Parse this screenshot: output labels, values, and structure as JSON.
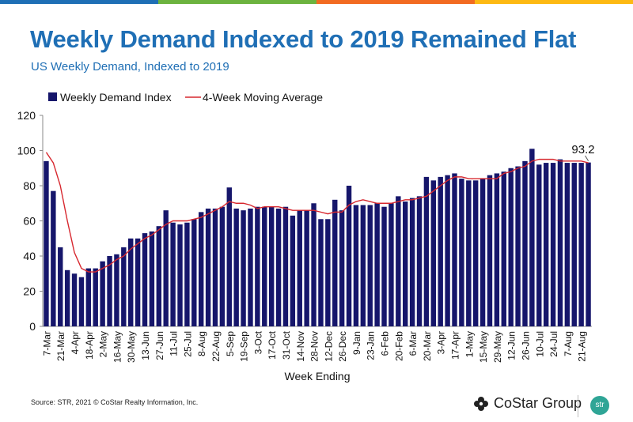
{
  "header": {
    "title": "Weekly Demand Indexed to 2019 Remained Flat",
    "subtitle": "US Weekly Demand, Indexed to 2019"
  },
  "colors": {
    "bar": "#16166b",
    "line": "#d7282f",
    "title": "#1f6fb5",
    "top_stripe": [
      "#1f6fb5",
      "#6cb33f",
      "#f26b21",
      "#fdb913"
    ]
  },
  "footer": {
    "source": "Source: STR, 2021 © CoStar Realty Information, Inc.",
    "logo_text": "CoStar Group",
    "logo_icon": "costar-flower-icon",
    "badge_text": "str"
  },
  "chart_data": {
    "type": "bar",
    "xlabel": "Week Ending",
    "ylabel": "",
    "ylim": [
      0,
      120
    ],
    "yticks": [
      0,
      20,
      40,
      60,
      80,
      100,
      120
    ],
    "legend": {
      "placement": "top-left",
      "entries": [
        "Weekly Demand Index",
        "4-Week Moving Average"
      ]
    },
    "callout": "93.2",
    "tick_labels": [
      "7-Mar",
      "21-Mar",
      "4-Apr",
      "18-Apr",
      "2-May",
      "16-May",
      "30-May",
      "13-Jun",
      "27-Jun",
      "11-Jul",
      "25-Jul",
      "8-Aug",
      "22-Aug",
      "5-Sep",
      "19-Sep",
      "3-Oct",
      "17-Oct",
      "31-Oct",
      "14-Nov",
      "28-Nov",
      "12-Dec",
      "26-Dec",
      "9-Jan",
      "23-Jan",
      "6-Feb",
      "20-Feb",
      "6-Mar",
      "20-Mar",
      "3-Apr",
      "17-Apr",
      "1-May",
      "15-May",
      "29-May",
      "12-Jun",
      "26-Jun",
      "10-Jul",
      "24-Jul",
      "7-Aug",
      "21-Aug"
    ],
    "series": [
      {
        "name": "Weekly Demand Index",
        "type": "bar",
        "values": [
          94,
          77,
          45,
          32,
          30,
          28,
          33,
          33,
          37,
          40,
          41,
          45,
          50,
          50,
          53,
          54,
          57,
          66,
          59,
          58,
          59,
          61,
          65,
          67,
          67,
          68,
          79,
          67,
          66,
          67,
          68,
          68,
          68,
          67,
          68,
          63,
          66,
          66,
          70,
          61,
          61,
          72,
          66,
          80,
          69,
          69,
          69,
          70,
          68,
          70,
          74,
          71,
          73,
          74,
          85,
          83,
          85,
          86,
          87,
          84,
          83,
          83,
          84,
          86,
          87,
          88,
          90,
          91,
          94,
          101,
          92,
          93,
          93,
          95,
          93,
          93,
          93,
          93.2
        ]
      },
      {
        "name": "4-Week Moving Average",
        "type": "line",
        "values": [
          99,
          93,
          80,
          60,
          42,
          33,
          31,
          31,
          33,
          35,
          38,
          40,
          44,
          47,
          50,
          52,
          55,
          58,
          60,
          60,
          60,
          61,
          62,
          64,
          66,
          68,
          71,
          70,
          70,
          69,
          67,
          68,
          68,
          68,
          67,
          66,
          66,
          66,
          66,
          65,
          64,
          65,
          65,
          69,
          71,
          72,
          71,
          70,
          70,
          70,
          71,
          72,
          72,
          73,
          74,
          77,
          80,
          83,
          85,
          85,
          84,
          84,
          84,
          84,
          84,
          87,
          88,
          90,
          91,
          94,
          95,
          95,
          95,
          94,
          94,
          94,
          94,
          93
        ]
      }
    ]
  }
}
